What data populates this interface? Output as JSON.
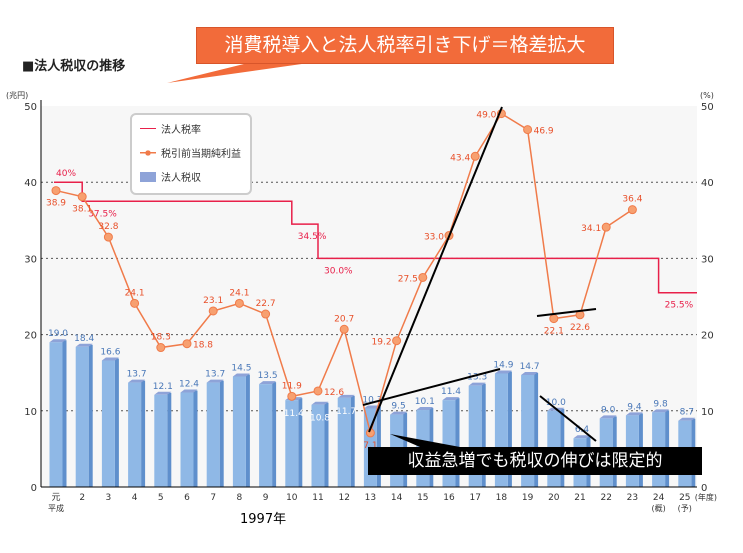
{
  "page_title": "■法人税収の推移",
  "callout_top": "消費税導入と法人税率引き下げ＝格差拡大",
  "callout_bottom": "収益急増でも税収の伸びは限定的",
  "year_note": "1997年",
  "chart_data": {
    "type": "bar+line",
    "title": "法人税収の推移",
    "left_axis_unit": "(兆円)",
    "right_axis_unit": "(%)",
    "x_axis_unit": "(年度)",
    "ylim": [
      0,
      50
    ],
    "yticks": [
      0,
      10,
      20,
      30,
      40,
      50
    ],
    "grid": "dotted at 10,20,30,40",
    "legend_placement": "top-left",
    "categories": [
      "元",
      "2",
      "3",
      "4",
      "5",
      "6",
      "7",
      "8",
      "9",
      "10",
      "11",
      "12",
      "13",
      "14",
      "15",
      "16",
      "17",
      "18",
      "19",
      "20",
      "21",
      "22",
      "23",
      "24",
      "25"
    ],
    "category_sublabels": {
      "0": "平成",
      "23": "(概)",
      "24": "(予)"
    },
    "series": [
      {
        "name": "法人税収",
        "type": "bar",
        "color": "#8fb8e6",
        "values": [
          19.0,
          18.4,
          16.6,
          13.7,
          12.1,
          12.4,
          13.7,
          14.5,
          13.5,
          11.4,
          10.8,
          11.7,
          10.3,
          9.5,
          10.1,
          11.4,
          13.3,
          14.9,
          14.7,
          10.0,
          6.4,
          9.0,
          9.4,
          9.8,
          8.7
        ]
      },
      {
        "name": "税引前当期純利益",
        "type": "line",
        "color": "#f07b4a",
        "values": [
          38.9,
          38.1,
          32.8,
          24.1,
          18.3,
          18.8,
          23.1,
          24.1,
          22.7,
          11.9,
          12.6,
          20.7,
          7.1,
          19.2,
          27.5,
          33.0,
          43.4,
          49.0,
          46.9,
          22.1,
          22.6,
          34.1,
          36.4,
          null,
          null
        ]
      },
      {
        "name": "法人税率",
        "type": "step",
        "color": "#e8204a",
        "values": [
          40,
          37.5,
          37.5,
          37.5,
          37.5,
          37.5,
          37.5,
          37.5,
          37.5,
          34.5,
          30,
          30,
          30,
          30,
          30,
          30,
          30,
          30,
          30,
          30,
          30,
          30,
          30,
          25.5,
          25.5
        ],
        "labels": [
          {
            "index": 0,
            "text": "40%"
          },
          {
            "index": 1,
            "text": "37.5%"
          },
          {
            "index": 9,
            "text": "34.5%"
          },
          {
            "index": 10,
            "text": "30.0%"
          },
          {
            "index": 23,
            "text": "25.5%"
          }
        ]
      }
    ]
  }
}
